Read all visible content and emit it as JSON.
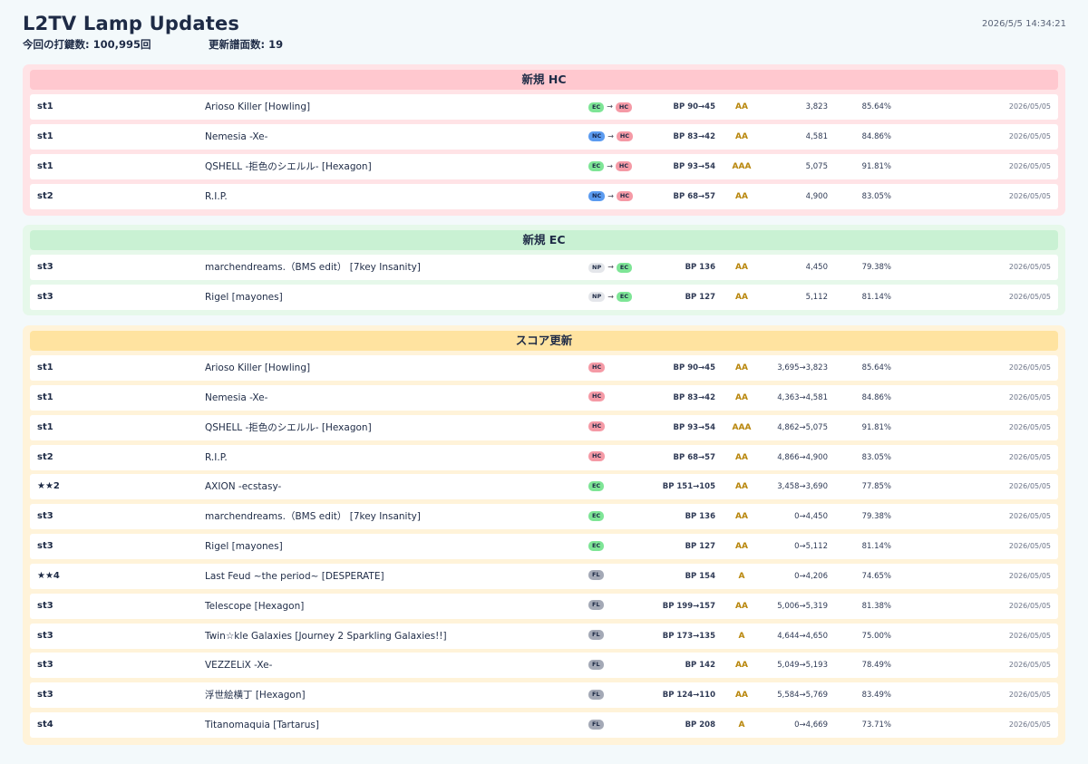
{
  "header": {
    "title": "L2TV Lamp Updates",
    "play_count": "今回の打鍵数: 100,995回",
    "updated_charts": "更新譜面数: 19",
    "timestamp": "2026/5/5 14:34:21"
  },
  "sections": [
    {
      "key": "hc",
      "title": "新規 HC",
      "rows": [
        {
          "level": "st1",
          "title": "Arioso Killer [Howling]",
          "lamp_from": "EC",
          "lamp_to": "HC",
          "bp": "BP 90→45",
          "grade": "AA",
          "score": "3,823",
          "rate": "85.64%",
          "date": "2026/05/05"
        },
        {
          "level": "st1",
          "title": "Nemesia -Xe-",
          "lamp_from": "NC",
          "lamp_to": "HC",
          "bp": "BP 83→42",
          "grade": "AA",
          "score": "4,581",
          "rate": "84.86%",
          "date": "2026/05/05"
        },
        {
          "level": "st1",
          "title": "QSHELL -拒色のシエルル- [Hexagon]",
          "lamp_from": "EC",
          "lamp_to": "HC",
          "bp": "BP 93→54",
          "grade": "AAA",
          "score": "5,075",
          "rate": "91.81%",
          "date": "2026/05/05"
        },
        {
          "level": "st2",
          "title": "R.I.P.",
          "lamp_from": "NC",
          "lamp_to": "HC",
          "bp": "BP 68→57",
          "grade": "AA",
          "score": "4,900",
          "rate": "83.05%",
          "date": "2026/05/05"
        }
      ]
    },
    {
      "key": "ec",
      "title": "新規 EC",
      "rows": [
        {
          "level": "st3",
          "title": "marchendreams.（BMS edit） [7key Insanity]",
          "lamp_from": "NP",
          "lamp_to": "EC",
          "bp": "BP 136",
          "grade": "AA",
          "score": "4,450",
          "rate": "79.38%",
          "date": "2026/05/05"
        },
        {
          "level": "st3",
          "title": "Rigel [mayones]",
          "lamp_from": "NP",
          "lamp_to": "EC",
          "bp": "BP 127",
          "grade": "AA",
          "score": "5,112",
          "rate": "81.14%",
          "date": "2026/05/05"
        }
      ]
    },
    {
      "key": "sc",
      "title": "スコア更新",
      "rows": [
        {
          "level": "st1",
          "title": "Arioso Killer [Howling]",
          "lamp_from": "",
          "lamp_to": "HC",
          "bp": "BP 90→45",
          "grade": "AA",
          "score": "3,695→3,823",
          "rate": "85.64%",
          "date": "2026/05/05"
        },
        {
          "level": "st1",
          "title": "Nemesia -Xe-",
          "lamp_from": "",
          "lamp_to": "HC",
          "bp": "BP 83→42",
          "grade": "AA",
          "score": "4,363→4,581",
          "rate": "84.86%",
          "date": "2026/05/05"
        },
        {
          "level": "st1",
          "title": "QSHELL -拒色のシエルル- [Hexagon]",
          "lamp_from": "",
          "lamp_to": "HC",
          "bp": "BP 93→54",
          "grade": "AAA",
          "score": "4,862→5,075",
          "rate": "91.81%",
          "date": "2026/05/05"
        },
        {
          "level": "st2",
          "title": "R.I.P.",
          "lamp_from": "",
          "lamp_to": "HC",
          "bp": "BP 68→57",
          "grade": "AA",
          "score": "4,866→4,900",
          "rate": "83.05%",
          "date": "2026/05/05"
        },
        {
          "level": "★★2",
          "title": "AXION -ecstasy-",
          "lamp_from": "",
          "lamp_to": "EC",
          "bp": "BP 151→105",
          "grade": "AA",
          "score": "3,458→3,690",
          "rate": "77.85%",
          "date": "2026/05/05"
        },
        {
          "level": "st3",
          "title": "marchendreams.（BMS edit） [7key Insanity]",
          "lamp_from": "",
          "lamp_to": "EC",
          "bp": "BP 136",
          "grade": "AA",
          "score": "0→4,450",
          "rate": "79.38%",
          "date": "2026/05/05"
        },
        {
          "level": "st3",
          "title": "Rigel [mayones]",
          "lamp_from": "",
          "lamp_to": "EC",
          "bp": "BP 127",
          "grade": "AA",
          "score": "0→5,112",
          "rate": "81.14%",
          "date": "2026/05/05"
        },
        {
          "level": "★★4",
          "title": "Last Feud ~the period~ [DESPERATE]",
          "lamp_from": "",
          "lamp_to": "FL",
          "bp": "BP 154",
          "grade": "A",
          "score": "0→4,206",
          "rate": "74.65%",
          "date": "2026/05/05"
        },
        {
          "level": "st3",
          "title": "Telescope [Hexagon]",
          "lamp_from": "",
          "lamp_to": "FL",
          "bp": "BP 199→157",
          "grade": "AA",
          "score": "5,006→5,319",
          "rate": "81.38%",
          "date": "2026/05/05"
        },
        {
          "level": "st3",
          "title": "Twin☆kle Galaxies [Journey 2 Sparkling Galaxies!!]",
          "lamp_from": "",
          "lamp_to": "FL",
          "bp": "BP 173→135",
          "grade": "A",
          "score": "4,644→4,650",
          "rate": "75.00%",
          "date": "2026/05/05"
        },
        {
          "level": "st3",
          "title": "VEZZELiX -Xe-",
          "lamp_from": "",
          "lamp_to": "FL",
          "bp": "BP 142",
          "grade": "AA",
          "score": "5,049→5,193",
          "rate": "78.49%",
          "date": "2026/05/05"
        },
        {
          "level": "st3",
          "title": "浮世絵横丁 [Hexagon]",
          "lamp_from": "",
          "lamp_to": "FL",
          "bp": "BP 124→110",
          "grade": "AA",
          "score": "5,584→5,769",
          "rate": "83.49%",
          "date": "2026/05/05"
        },
        {
          "level": "st4",
          "title": "Titanomaquia [Tartarus]",
          "lamp_from": "",
          "lamp_to": "FL",
          "bp": "BP 208",
          "grade": "A",
          "score": "0→4,669",
          "rate": "73.71%",
          "date": "2026/05/05"
        }
      ]
    }
  ],
  "lamp_colors": {
    "EC": "#7ee596",
    "HC": "#f59aa6",
    "NC": "#5b9bf0",
    "NP": "#e4e6ea",
    "FL": "#a4a9b6"
  },
  "grade_color": "#b8860b"
}
